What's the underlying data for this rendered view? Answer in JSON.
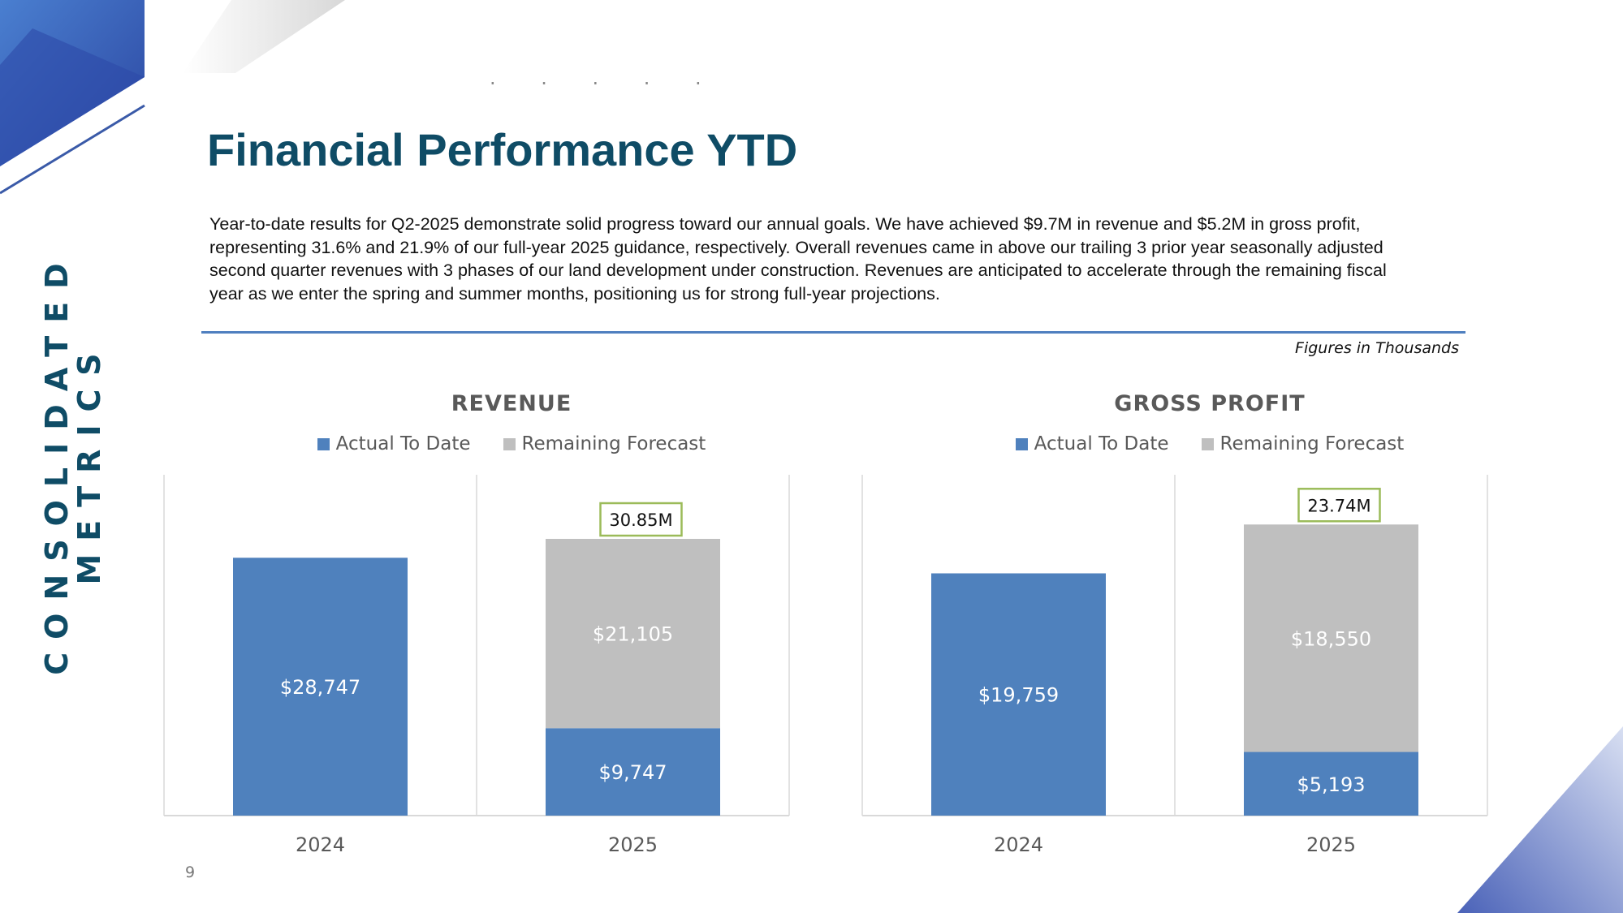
{
  "slide": {
    "side_label": "CONSOLIDATED METRICS",
    "dots": ". . . . .",
    "title": "Financial Performance YTD",
    "body": "Year-to-date results for Q2-2025 demonstrate solid progress toward our annual goals. We have achieved $9.7M in revenue and $5.2M in gross profit, representing 31.6% and 21.9% of our full-year 2025 guidance, respectively. Overall revenues came in above our trailing 3 prior year seasonally adjusted second quarter revenues with 3 phases of our land development under construction. Revenues are anticipated to accelerate through the remaining fiscal year as we enter the spring and summer months, positioning us for strong full-year projections.",
    "figures_note": "Figures in Thousands",
    "page_number": "9"
  },
  "colors": {
    "actual": "#4f81bd",
    "forecast": "#bfbfbf",
    "total_box": "#9bbb59",
    "title": "#0f4c66",
    "axis_text": "#595959",
    "gridline": "#d9d9d9"
  },
  "chart_data": [
    {
      "type": "bar",
      "stacked": true,
      "title": "REVENUE",
      "categories": [
        "2024",
        "2025"
      ],
      "series": [
        {
          "name": "Actual To Date",
          "values": [
            28747,
            9747
          ],
          "labels": [
            "$28,747",
            "$9,747"
          ]
        },
        {
          "name": "Remaining Forecast",
          "values": [
            0,
            21105
          ],
          "labels": [
            "",
            "$21,105"
          ]
        }
      ],
      "total_label": "30.85M",
      "ylim": [
        0,
        38000
      ],
      "xlabel": "",
      "ylabel": "",
      "legend": "top"
    },
    {
      "type": "bar",
      "stacked": true,
      "title": "GROSS PROFIT",
      "categories": [
        "2024",
        "2025"
      ],
      "series": [
        {
          "name": "Actual To Date",
          "values": [
            19759,
            5193
          ],
          "labels": [
            "$19,759",
            "$5,193"
          ]
        },
        {
          "name": "Remaining Forecast",
          "values": [
            0,
            18550
          ],
          "labels": [
            "",
            "$18,550"
          ]
        }
      ],
      "total_label": "23.74M",
      "ylim": [
        0,
        27800
      ],
      "xlabel": "",
      "ylabel": "",
      "legend": "top"
    }
  ]
}
